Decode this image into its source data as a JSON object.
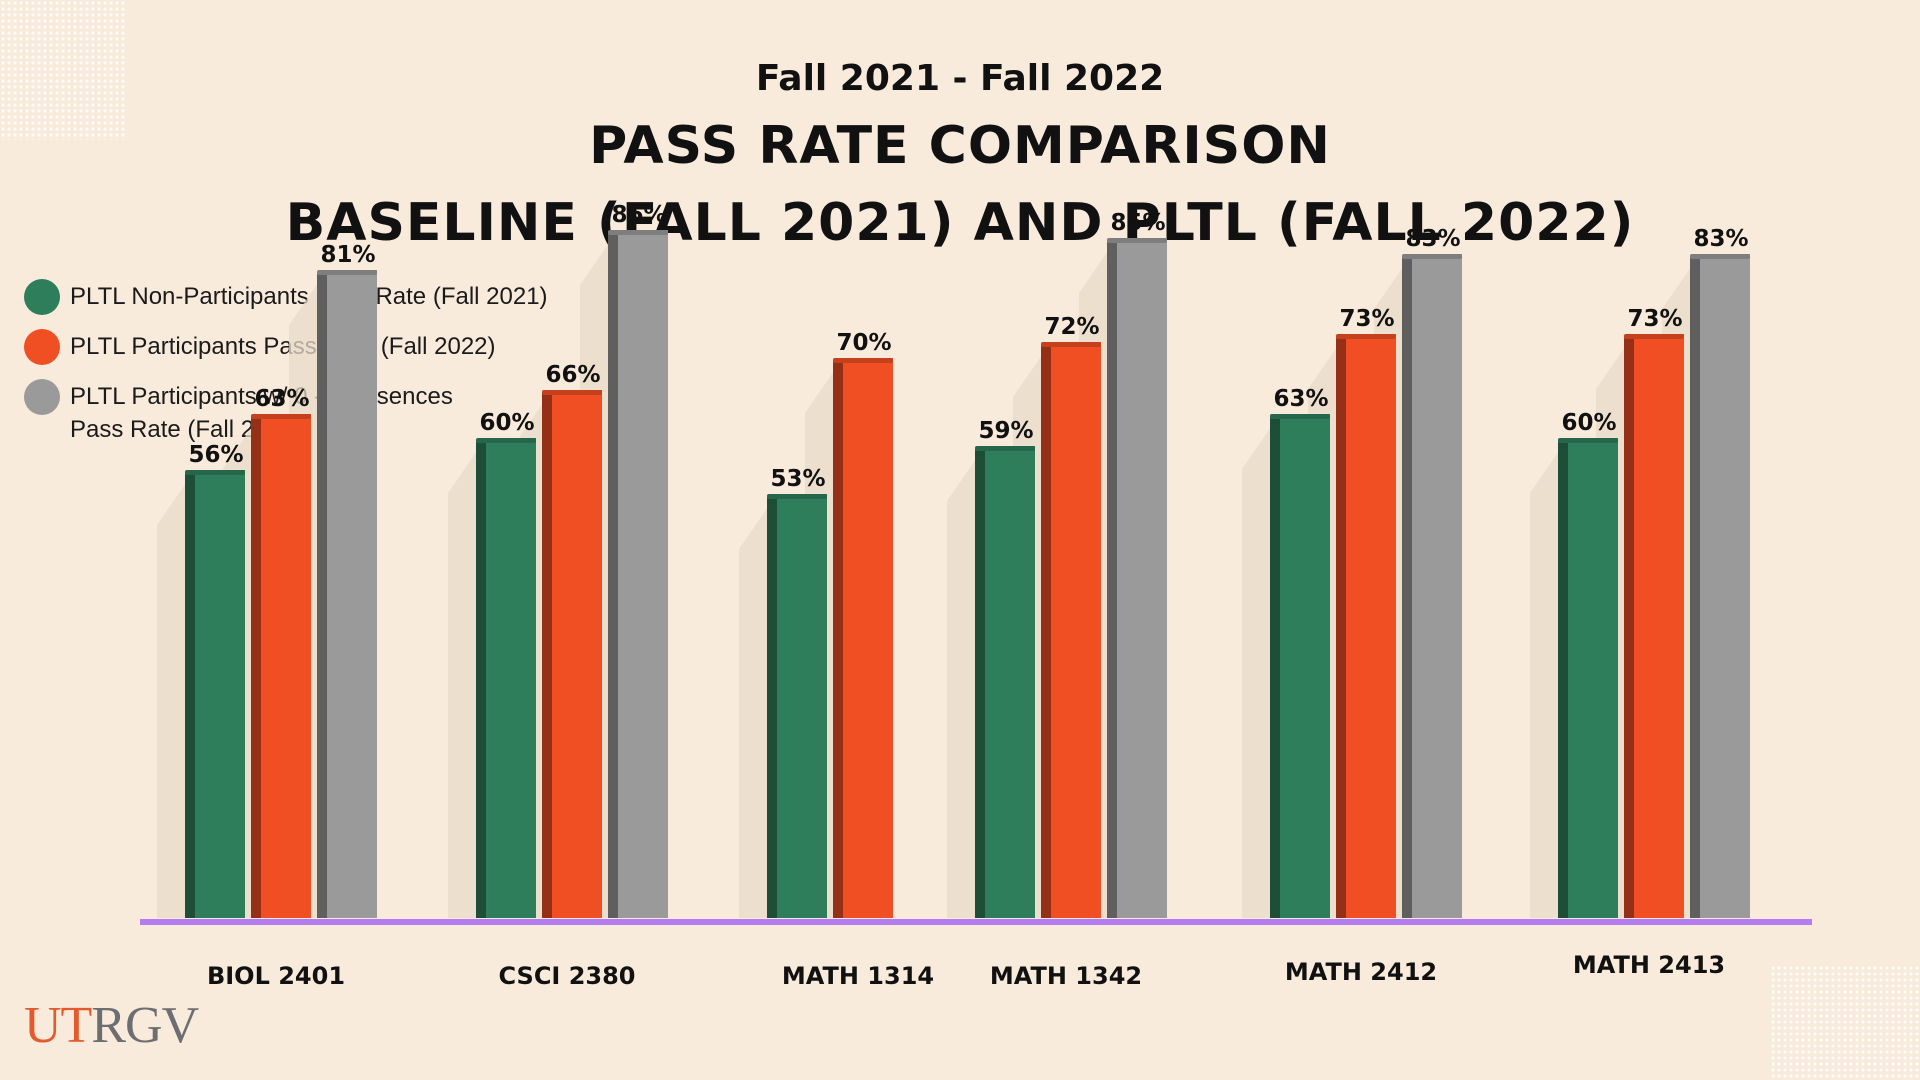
{
  "header": {
    "subtitle": "Fall 2021 - Fall 2022",
    "title_line1": "PASS RATE COMPARISON",
    "title_line2": "BASELINE (FALL 2021) AND PLTL (FALL 2022)"
  },
  "legend": {
    "items": [
      {
        "label": "PLTL Non-Participants Pass Rate (Fall 2021)",
        "color": "#2e7d5b"
      },
      {
        "label": "PLTL Participants Pass Rate (Fall 2022)",
        "color": "#f04e23"
      },
      {
        "label": "PLTL Participants w/ 0 - 4 Absences\nPass Rate (Fall 2022)",
        "color": "#9a9a9a"
      }
    ]
  },
  "logo": {
    "text_part1": "UT",
    "text_part2": "RGV"
  },
  "colors": {
    "background": "#f9ebdc",
    "baseline": "#b57cf0",
    "shadow": "#e7dbc9"
  },
  "chart_data": {
    "type": "bar",
    "title": "PASS RATE COMPARISON BASELINE (FALL 2021) AND PLTL (FALL 2022)",
    "subtitle": "Fall 2021 - Fall 2022",
    "value_suffix": "%",
    "ylim": [
      0,
      100
    ],
    "grid": false,
    "legend_position": "top-left",
    "categories": [
      "BIOL 2401",
      "CSCI 2380",
      "MATH 1314",
      "MATH 1342",
      "MATH 2412",
      "MATH 2413"
    ],
    "series": [
      {
        "name": "PLTL Non-Participants Pass Rate (Fall 2021)",
        "color": "#2e7d5b",
        "values": [
          56,
          60,
          53,
          59,
          63,
          60
        ]
      },
      {
        "name": "PLTL Participants Pass Rate (Fall 2022)",
        "color": "#f04e23",
        "values": [
          63,
          66,
          70,
          72,
          73,
          73
        ]
      },
      {
        "name": "PLTL Participants w/ 0 - 4 Absences\nPass Rate (Fall 2022)",
        "color": "#9a9a9a",
        "values": [
          81,
          86,
          null,
          85,
          83,
          83
        ]
      }
    ]
  }
}
